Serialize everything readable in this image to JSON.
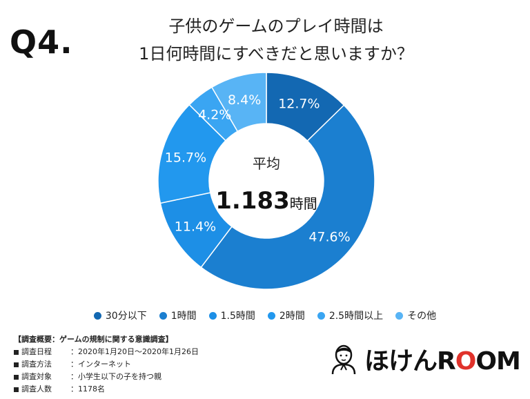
{
  "question_label": "Q4.",
  "title_lines": [
    "子供のゲームのプレイ時間は",
    "1日何時間にすべきだと思いますか？"
  ],
  "center": {
    "label": "平均",
    "value": "1.183",
    "unit": "時間"
  },
  "chart_data": {
    "type": "pie",
    "categories": [
      "30分以下",
      "1時間",
      "1.5時間",
      "2時間",
      "2.5時間以上",
      "その他"
    ],
    "values": [
      12.7,
      47.6,
      11.4,
      15.7,
      4.2,
      8.4
    ],
    "value_labels": [
      "12.7%",
      "47.6%",
      "11.4%",
      "15.7%",
      "4.2%",
      "8.4%"
    ],
    "colors": [
      "#1368b2",
      "#1b7fd0",
      "#1d8fe6",
      "#2298ee",
      "#3aa5f2",
      "#58b4f5"
    ],
    "title": "子供のゲームのプレイ時間は 1日何時間にすべきだと思いますか？",
    "legend_position": "bottom",
    "donut": true,
    "start_angle": "12 o'clock, clockwise"
  },
  "survey": {
    "header": "【調査概要：ゲームの規制に関する意識調査】",
    "rows": [
      {
        "key": "調査日程",
        "value": "：2020年1月20日〜2020年1月26日"
      },
      {
        "key": "調査方法",
        "value": "：インターネット"
      },
      {
        "key": "調査対象",
        "value": "：小学生以下の子を持つ親"
      },
      {
        "key": "調査人数",
        "value": "：1178名"
      }
    ]
  },
  "brand": {
    "prefix": "ほけん",
    "suffix_r": "R",
    "suffix_o1": "O",
    "suffix_o2": "O",
    "suffix_m": "M",
    "logo_icon": "person-avatar-icon"
  }
}
